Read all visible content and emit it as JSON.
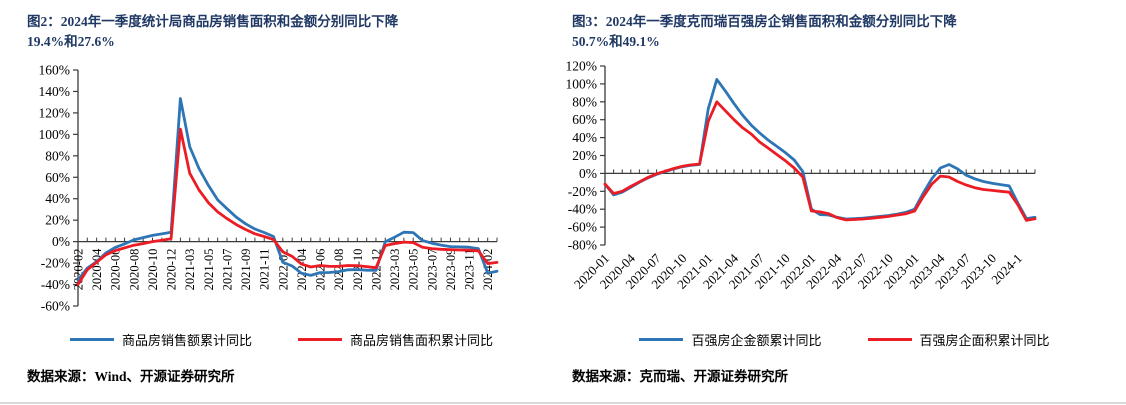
{
  "chart_data": [
    {
      "type": "line",
      "title_lines": [
        "图2：2024年一季度统计局商品房销售面积和金额分别同比下降",
        "19.4%和27.6%"
      ],
      "source": "数据来源：Wind、开源证券研究所",
      "ylim": [
        -60,
        160
      ],
      "ytick_step": 20,
      "grid": false,
      "legend_position": "bottom",
      "x_label_rotation": -90,
      "label_every": 2,
      "categories": [
        "2020-02",
        "2020-03",
        "2020-04",
        "2020-05",
        "2020-06",
        "2020-07",
        "2020-08",
        "2020-09",
        "2020-10",
        "2020-11",
        "2020-12",
        "2021-02",
        "2021-03",
        "2021-04",
        "2021-05",
        "2021-06",
        "2021-07",
        "2021-08",
        "2021-09",
        "2021-10",
        "2021-11",
        "2021-12",
        "2022-02",
        "2022-03",
        "2022-04",
        "2022-05",
        "2022-06",
        "2022-07",
        "2022-08",
        "2022-09",
        "2022-10",
        "2022-11",
        "2022-12",
        "2023-02",
        "2023-03",
        "2023-04",
        "2023-05",
        "2023-06",
        "2023-07",
        "2023-08",
        "2023-09",
        "2023-10",
        "2023-11",
        "2023-12",
        "2024-02",
        "2024-03"
      ],
      "x_tick_labels": [
        "2020-02",
        "2020-04",
        "2020-06",
        "2020-08",
        "2020-10",
        "2020-12",
        "2021-03",
        "2021-05",
        "2021-07",
        "2021-09",
        "2021-11",
        "2022-02",
        "2022-04",
        "2022-06",
        "2022-08",
        "2022-10",
        "2022-12",
        "2023-03",
        "2023-05",
        "2023-07",
        "2023-09",
        "2023-11",
        "2024-02"
      ],
      "series": [
        {
          "name": "商品房销售额累计同比",
          "color": "#2E75B6",
          "values": [
            -35.9,
            -24.7,
            -18.6,
            -10.6,
            -5.4,
            -2.1,
            1.6,
            3.8,
            5.8,
            7.2,
            8.7,
            133.4,
            88.5,
            68.2,
            52.4,
            38.9,
            30.7,
            22.8,
            16.6,
            11.8,
            8.5,
            4.8,
            -19.3,
            -22.7,
            -29.5,
            -31.5,
            -28.9,
            -28.8,
            -27.9,
            -26.3,
            -26.1,
            -26.6,
            -26.7,
            -0.1,
            4.1,
            8.8,
            8.4,
            1.1,
            -1.5,
            -3.2,
            -4.6,
            -4.9,
            -5.2,
            -6.5,
            -29.3,
            -27.6
          ]
        },
        {
          "name": "商品房销售面积累计同比",
          "color": "#EC1C24",
          "values": [
            -39.9,
            -26.3,
            -19.3,
            -12.3,
            -8.4,
            -5.8,
            -3.3,
            -1.8,
            0.0,
            1.3,
            2.6,
            104.9,
            63.8,
            48.1,
            36.3,
            27.7,
            21.5,
            15.9,
            11.3,
            7.3,
            4.8,
            1.9,
            -9.6,
            -13.8,
            -20.9,
            -23.6,
            -22.2,
            -23.1,
            -23.0,
            -22.2,
            -22.3,
            -23.3,
            -24.3,
            -3.6,
            -1.8,
            -0.4,
            -0.9,
            -5.3,
            -6.5,
            -7.1,
            -7.5,
            -7.8,
            -8.0,
            -8.5,
            -20.5,
            -19.4
          ]
        }
      ]
    },
    {
      "type": "line",
      "title_lines": [
        "图3：2024年一季度克而瑞百强房企销售面积和金额分别同比下降",
        "50.7%和49.1%"
      ],
      "source": "数据来源：克而瑞、开源证券研究所",
      "ylim": [
        -80,
        120
      ],
      "ytick_step": 20,
      "grid": false,
      "legend_position": "bottom",
      "x_label_rotation": -45,
      "label_every": 3,
      "categories": [
        "2020-01",
        "2020-02",
        "2020-03",
        "2020-04",
        "2020-05",
        "2020-06",
        "2020-07",
        "2020-08",
        "2020-09",
        "2020-10",
        "2020-11",
        "2020-12",
        "2021-01",
        "2021-02",
        "2021-03",
        "2021-04",
        "2021-05",
        "2021-06",
        "2021-07",
        "2021-08",
        "2021-09",
        "2021-10",
        "2021-11",
        "2021-12",
        "2022-01",
        "2022-02",
        "2022-03",
        "2022-04",
        "2022-05",
        "2022-06",
        "2022-07",
        "2022-08",
        "2022-09",
        "2022-10",
        "2022-11",
        "2022-12",
        "2023-01",
        "2023-02",
        "2023-03",
        "2023-04",
        "2023-05",
        "2023-06",
        "2023-07",
        "2023-08",
        "2023-09",
        "2023-10",
        "2023-11",
        "2023-12",
        "2024-01",
        "2024-02",
        "2024-03"
      ],
      "x_tick_labels": [
        "2020-01",
        "2020-04",
        "2020-07",
        "2020-10",
        "2021-01",
        "2021-04",
        "2021-07",
        "2021-10",
        "2022-01",
        "2022-04",
        "2022-07",
        "2022-10",
        "2023-01",
        "2023-04",
        "2023-07",
        "2023-10",
        "2024-1"
      ],
      "series": [
        {
          "name": "百强房企金额累计同比",
          "color": "#2E75B6",
          "values": [
            -12,
            -24,
            -21,
            -15.5,
            -10,
            -5,
            -1,
            2,
            5,
            7.5,
            9,
            10,
            72,
            105,
            92,
            78,
            65,
            54,
            45,
            37,
            30,
            23,
            15,
            2,
            -40,
            -46,
            -46.5,
            -49,
            -51,
            -50.5,
            -50,
            -49,
            -48,
            -47,
            -45.5,
            -43.5,
            -40,
            -22,
            -6,
            6,
            10,
            5,
            -2,
            -6,
            -9,
            -11,
            -12.5,
            -14,
            -33,
            -50.5,
            -49.1
          ]
        },
        {
          "name": "百强房企面积累计同比",
          "color": "#EC1C24",
          "values": [
            -12,
            -22.5,
            -20,
            -14.5,
            -9.5,
            -4.5,
            -0.5,
            2.5,
            5.5,
            8,
            9.5,
            10.5,
            58,
            80,
            70,
            60,
            51,
            44,
            35,
            28,
            21,
            14,
            6,
            -4,
            -42,
            -43,
            -45,
            -49.5,
            -52,
            -51.5,
            -51,
            -50,
            -49,
            -48,
            -46.5,
            -45,
            -42,
            -26,
            -12,
            -3,
            -4,
            -9,
            -13,
            -16,
            -18,
            -19,
            -20,
            -21,
            -35,
            -52.5,
            -50.7
          ]
        }
      ]
    }
  ]
}
